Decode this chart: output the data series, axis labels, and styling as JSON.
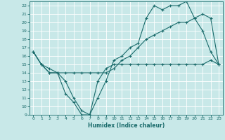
{
  "xlabel": "Humidex (Indice chaleur)",
  "bg_color": "#c8e8e8",
  "grid_color": "#ffffff",
  "line_color": "#1a6b6b",
  "xlim": [
    -0.5,
    23.5
  ],
  "ylim": [
    9,
    22.5
  ],
  "yticks": [
    9,
    10,
    11,
    12,
    13,
    14,
    15,
    16,
    17,
    18,
    19,
    20,
    21,
    22
  ],
  "xticks": [
    0,
    1,
    2,
    3,
    4,
    5,
    6,
    7,
    8,
    9,
    10,
    11,
    12,
    13,
    14,
    15,
    16,
    17,
    18,
    19,
    20,
    21,
    22,
    23
  ],
  "line1_x": [
    0,
    1,
    2,
    3,
    4,
    5,
    6,
    7,
    8,
    9,
    10,
    11,
    12,
    13,
    14,
    15,
    16,
    17,
    18,
    19,
    20,
    21,
    22,
    23
  ],
  "line1_y": [
    16.5,
    15,
    14,
    14,
    11.5,
    10.5,
    9,
    9.0,
    13,
    14.5,
    15,
    15,
    15,
    15,
    15,
    15,
    15,
    15,
    15,
    15,
    15,
    15,
    15.5,
    15
  ],
  "line2_x": [
    0,
    1,
    2,
    3,
    4,
    5,
    6,
    7,
    8,
    9,
    10,
    11,
    12,
    13,
    14,
    15,
    16,
    17,
    18,
    19,
    20,
    21,
    22,
    23
  ],
  "line2_y": [
    16.5,
    15,
    14,
    14,
    14,
    14,
    14,
    14,
    14,
    14,
    14.5,
    15.5,
    16,
    17,
    18,
    18.5,
    19,
    19.5,
    20,
    20,
    20.5,
    21,
    20.5,
    15
  ],
  "line3_x": [
    0,
    1,
    2,
    3,
    4,
    5,
    6,
    7,
    8,
    9,
    10,
    11,
    12,
    13,
    14,
    15,
    16,
    17,
    18,
    19,
    20,
    21,
    22,
    23
  ],
  "line3_y": [
    16.5,
    15,
    14.5,
    14,
    13,
    11,
    9.5,
    9,
    11,
    13,
    15.5,
    16,
    17,
    17.5,
    20.5,
    22,
    21.5,
    22,
    22,
    22.5,
    20.5,
    19,
    16.5,
    15
  ]
}
